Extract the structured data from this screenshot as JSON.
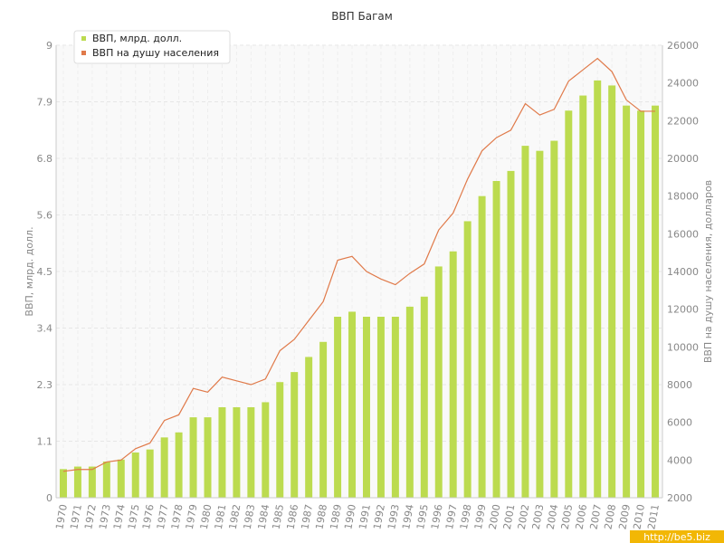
{
  "chart_data": {
    "type": "bar",
    "title": "ВВП Багам",
    "ylabel": "ВВП, млрд. долл.",
    "y2label": "ВВП на душу населения, долларов",
    "ylim": [
      0,
      9
    ],
    "y2lim": [
      2000,
      26000
    ],
    "yticks": [
      "0",
      "1.1",
      "2.3",
      "3.4",
      "4.5",
      "5.6",
      "6.8",
      "7.9",
      "9"
    ],
    "y2ticks": [
      "2000",
      "4000",
      "6000",
      "8000",
      "10000",
      "12000",
      "14000",
      "16000",
      "18000",
      "20000",
      "22000",
      "24000",
      "26000"
    ],
    "grid": true,
    "legend_position": "top-left",
    "categories": [
      "1970",
      "1971",
      "1972",
      "1973",
      "1974",
      "1975",
      "1976",
      "1977",
      "1978",
      "1979",
      "1980",
      "1981",
      "1982",
      "1983",
      "1984",
      "1985",
      "1986",
      "1987",
      "1988",
      "1989",
      "1990",
      "1991",
      "1992",
      "1993",
      "1994",
      "1995",
      "1996",
      "1997",
      "1998",
      "1999",
      "2000",
      "2001",
      "2002",
      "2003",
      "2004",
      "2005",
      "2006",
      "2007",
      "2008",
      "2009",
      "2010",
      "2011"
    ],
    "series": [
      {
        "name": "ВВП, млрд. долл.",
        "type": "bar",
        "axis": "left",
        "color": "#bcdb4f",
        "values": [
          0.57,
          0.62,
          0.62,
          0.72,
          0.76,
          0.9,
          0.96,
          1.2,
          1.3,
          1.6,
          1.6,
          1.8,
          1.8,
          1.8,
          1.9,
          2.3,
          2.5,
          2.8,
          3.1,
          3.6,
          3.7,
          3.6,
          3.6,
          3.6,
          3.8,
          4.0,
          4.6,
          4.9,
          5.5,
          6.0,
          6.3,
          6.5,
          7.0,
          6.9,
          7.1,
          7.7,
          8.0,
          8.3,
          8.2,
          7.8,
          7.7,
          7.8
        ]
      },
      {
        "name": "ВВП на душу населения",
        "type": "line",
        "axis": "right",
        "color": "#e07a4a",
        "values": [
          3400,
          3500,
          3500,
          3900,
          4000,
          4600,
          4900,
          6100,
          6400,
          7800,
          7600,
          8400,
          8200,
          8000,
          8300,
          9800,
          10400,
          11400,
          12400,
          14600,
          14800,
          14000,
          13600,
          13300,
          13900,
          14400,
          16200,
          17100,
          18900,
          20400,
          21100,
          21500,
          22900,
          22300,
          22600,
          24100,
          24700,
          25300,
          24600,
          23100,
          22500,
          22500
        ]
      }
    ]
  },
  "watermark": "http://be5.biz"
}
